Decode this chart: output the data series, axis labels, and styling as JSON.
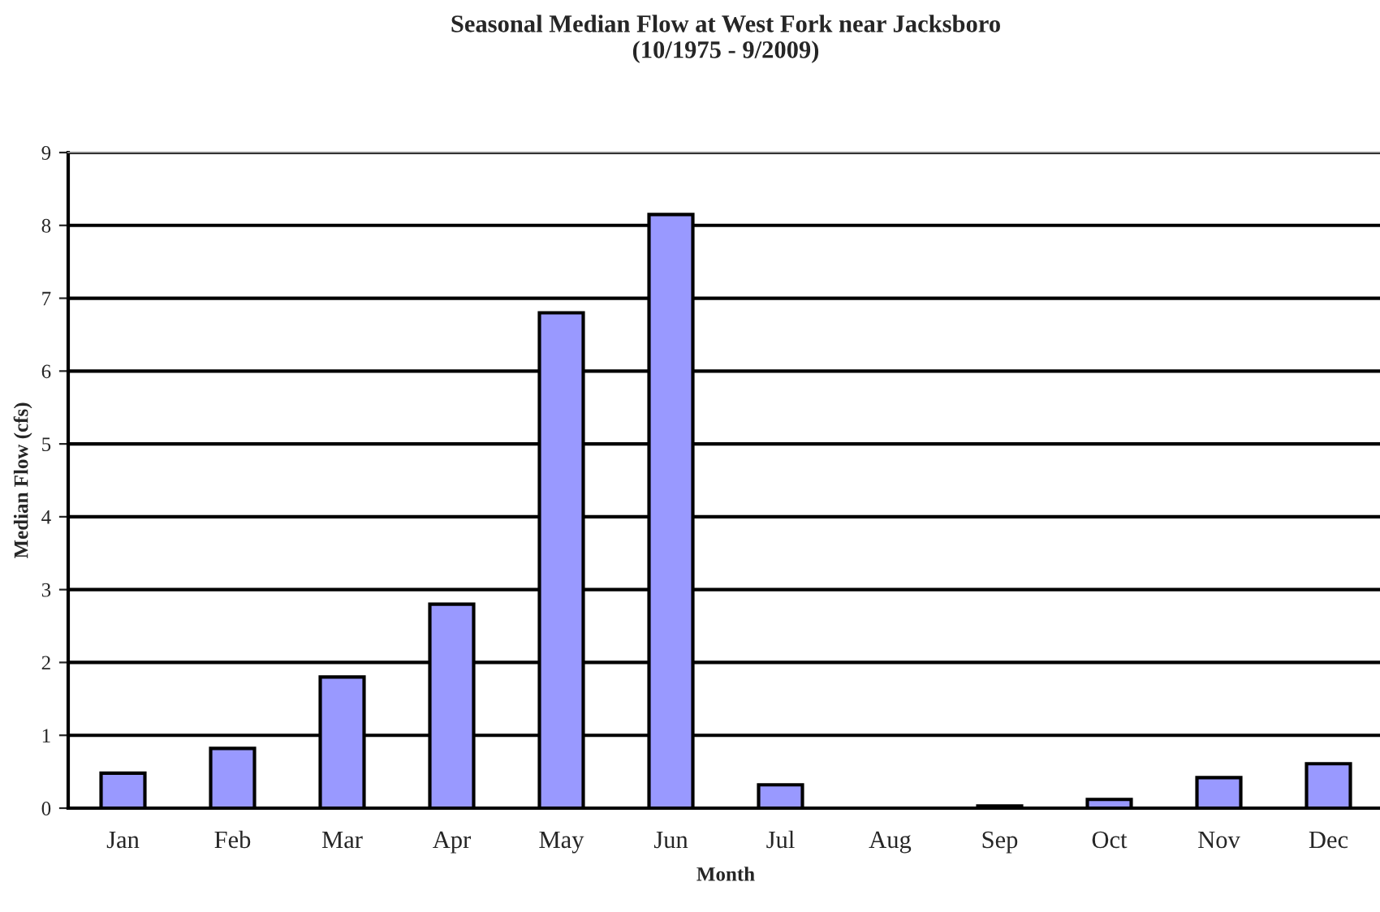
{
  "chart_data": {
    "type": "bar",
    "title": "Seasonal Median Flow at West Fork near Jacksboro\n(10/1975 - 9/2009)",
    "xlabel": "Month",
    "ylabel": "Median Flow (cfs)",
    "categories": [
      "Jan",
      "Feb",
      "Mar",
      "Apr",
      "May",
      "Jun",
      "Jul",
      "Aug",
      "Sep",
      "Oct",
      "Nov",
      "Dec"
    ],
    "values": [
      0.48,
      0.82,
      1.8,
      2.8,
      6.8,
      8.15,
      0.32,
      0,
      0.03,
      0.12,
      0.42,
      0.61
    ],
    "color": "#9999ff",
    "ylim": [
      0,
      9
    ],
    "yticks": [
      0,
      1,
      2,
      3,
      4,
      5,
      6,
      7,
      8,
      9
    ],
    "grid": "y",
    "legend": false
  }
}
